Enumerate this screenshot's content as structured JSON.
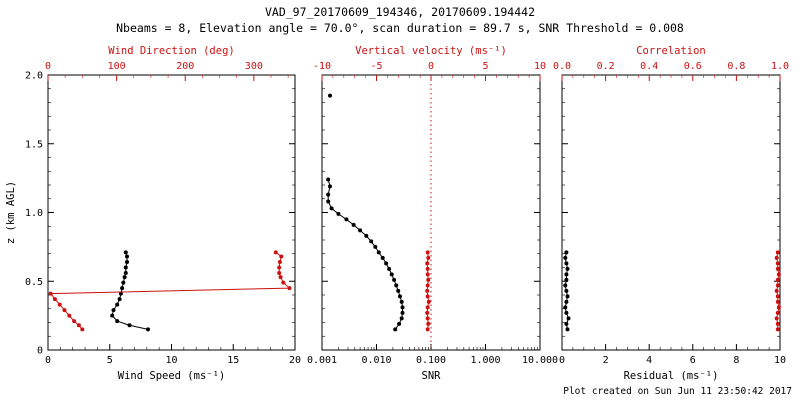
{
  "header": {
    "title": "VAD_97_20170609_194346, 20170609.194442",
    "subtitle": "Nbeams = 8, Elevation angle = 70.0°, scan duration = 89.7 s, SNR Threshold = 0.008"
  },
  "footer": {
    "created": "Plot created on Sun Jun 11 23:50:42 2017"
  },
  "colors": {
    "black": "#000000",
    "red": "#cc1111"
  },
  "chart_data": [
    {
      "type": "line",
      "name": "wind-panel",
      "ylabel": "z (km AGL)",
      "ylim": [
        0,
        2
      ],
      "yticks": [
        0,
        0.5,
        1,
        1.5,
        2
      ],
      "ytick_labels": [
        "0",
        "0.5",
        "1.0",
        "1.5",
        "2.0"
      ],
      "yminor": 0.1,
      "bottom_axis": {
        "label": "Wind Speed (ms⁻¹)",
        "lim": [
          0,
          20
        ],
        "ticks": [
          0,
          5,
          10,
          15,
          20
        ],
        "tick_labels": [
          "0",
          "5",
          "10",
          "15",
          "20"
        ],
        "minor": 1
      },
      "top_axis": {
        "label": "Wind Direction (deg)",
        "lim": [
          0,
          360
        ],
        "ticks": [
          0,
          100,
          200,
          300
        ],
        "tick_labels": [
          "0",
          "100",
          "200",
          "300"
        ],
        "minor": 25
      },
      "series": [
        {
          "name": "wind-speed",
          "axis": "bottom",
          "color": "black",
          "points": [
            [
              8.1,
              0.15
            ],
            [
              6.6,
              0.18
            ],
            [
              5.6,
              0.21
            ],
            [
              5.2,
              0.25
            ],
            [
              5.3,
              0.29
            ],
            [
              5.6,
              0.33
            ],
            [
              5.8,
              0.37
            ],
            [
              5.9,
              0.41
            ],
            [
              6.0,
              0.45
            ],
            [
              6.1,
              0.49
            ],
            [
              6.2,
              0.53
            ],
            [
              6.3,
              0.56
            ],
            [
              6.3,
              0.6
            ],
            [
              6.4,
              0.64
            ],
            [
              6.4,
              0.68
            ],
            [
              6.3,
              0.71
            ]
          ]
        },
        {
          "name": "wind-direction",
          "axis": "top",
          "color": "red",
          "points": [
            [
              50,
              0.15
            ],
            [
              45,
              0.18
            ],
            [
              38,
              0.21
            ],
            [
              31,
              0.25
            ],
            [
              24,
              0.29
            ],
            [
              17,
              0.33
            ],
            [
              10,
              0.37
            ],
            [
              4,
              0.41
            ],
            [
              352,
              0.45
            ],
            [
              343,
              0.49
            ],
            [
              339,
              0.53
            ],
            [
              337,
              0.56
            ],
            [
              337,
              0.6
            ],
            [
              338,
              0.64
            ],
            [
              340,
              0.68
            ],
            [
              332,
              0.71
            ]
          ]
        }
      ]
    },
    {
      "type": "line",
      "name": "snr-panel",
      "ylim": [
        0,
        2
      ],
      "yticks": [
        0,
        0.5,
        1,
        1.5,
        2
      ],
      "yminor": 0.1,
      "bottom_axis": {
        "label": "SNR",
        "lim": [
          0.001,
          10
        ],
        "log": true,
        "ticks": [
          0.001,
          0.01,
          0.1,
          1,
          10
        ],
        "tick_labels": [
          "0.001",
          "0.010",
          "0.100",
          "1.000",
          "10.000"
        ]
      },
      "top_axis": {
        "label": "Vertical velocity (ms⁻¹)",
        "lim": [
          -10,
          10
        ],
        "ticks": [
          -10,
          -5,
          0,
          5,
          10
        ],
        "tick_labels": [
          "-10",
          "-5",
          "0",
          "5",
          "10"
        ],
        "minor": 1
      },
      "ref_line": {
        "axis": "top",
        "value": 0,
        "color": "red"
      },
      "series": [
        {
          "name": "snr-profile",
          "axis": "bottom",
          "color": "black",
          "points": [
            [
              0.022,
              0.15
            ],
            [
              0.026,
              0.19
            ],
            [
              0.029,
              0.23
            ],
            [
              0.03,
              0.27
            ],
            [
              0.03,
              0.31
            ],
            [
              0.029,
              0.35
            ],
            [
              0.027,
              0.39
            ],
            [
              0.025,
              0.43
            ],
            [
              0.023,
              0.47
            ],
            [
              0.021,
              0.51
            ],
            [
              0.019,
              0.55
            ],
            [
              0.017,
              0.59
            ],
            [
              0.015,
              0.63
            ],
            [
              0.013,
              0.67
            ],
            [
              0.011,
              0.71
            ],
            [
              0.0095,
              0.75
            ],
            [
              0.008,
              0.79
            ],
            [
              0.0065,
              0.83
            ],
            [
              0.005,
              0.87
            ],
            [
              0.0038,
              0.91
            ],
            [
              0.0028,
              0.95
            ],
            [
              0.002,
              0.99
            ],
            [
              0.0015,
              1.03
            ],
            [
              0.0013,
              1.08
            ],
            [
              0.0013,
              1.13
            ],
            [
              0.0014,
              1.19
            ],
            [
              0.0013,
              1.24
            ]
          ]
        },
        {
          "name": "snr-outlier",
          "axis": "bottom",
          "color": "black",
          "points": [
            [
              0.0014,
              1.85
            ]
          ]
        },
        {
          "name": "vertical-velocity",
          "axis": "top",
          "color": "red",
          "points": [
            [
              -0.3,
              0.15
            ],
            [
              -0.25,
              0.19
            ],
            [
              -0.3,
              0.23
            ],
            [
              -0.35,
              0.27
            ],
            [
              -0.3,
              0.31
            ],
            [
              -0.2,
              0.35
            ],
            [
              -0.3,
              0.39
            ],
            [
              -0.35,
              0.43
            ],
            [
              -0.3,
              0.47
            ],
            [
              -0.25,
              0.51
            ],
            [
              -0.3,
              0.55
            ],
            [
              -0.3,
              0.59
            ],
            [
              -0.35,
              0.63
            ],
            [
              -0.25,
              0.67
            ],
            [
              -0.3,
              0.71
            ]
          ]
        }
      ]
    },
    {
      "type": "line",
      "name": "residual-panel",
      "ylim": [
        0,
        2
      ],
      "yticks": [
        0,
        0.5,
        1,
        1.5,
        2
      ],
      "yminor": 0.1,
      "bottom_axis": {
        "label": "Residual (ms⁻¹)",
        "lim": [
          0,
          10
        ],
        "ticks": [
          0,
          2,
          4,
          6,
          8,
          10
        ],
        "tick_labels": [
          "0",
          "2",
          "4",
          "6",
          "8",
          "10"
        ],
        "minor": 0.5
      },
      "top_axis": {
        "label": "Correlation",
        "lim": [
          0,
          1
        ],
        "ticks": [
          0,
          0.2,
          0.4,
          0.6,
          0.8,
          1
        ],
        "tick_labels": [
          "0.0",
          "0.2",
          "0.4",
          "0.6",
          "0.8",
          "1.0"
        ],
        "minor": 0.05
      },
      "series": [
        {
          "name": "residual",
          "axis": "bottom",
          "color": "black",
          "points": [
            [
              0.25,
              0.15
            ],
            [
              0.2,
              0.19
            ],
            [
              0.3,
              0.23
            ],
            [
              0.2,
              0.27
            ],
            [
              0.15,
              0.31
            ],
            [
              0.2,
              0.35
            ],
            [
              0.25,
              0.39
            ],
            [
              0.2,
              0.43
            ],
            [
              0.15,
              0.47
            ],
            [
              0.2,
              0.51
            ],
            [
              0.2,
              0.55
            ],
            [
              0.25,
              0.59
            ],
            [
              0.2,
              0.63
            ],
            [
              0.15,
              0.67
            ],
            [
              0.2,
              0.71
            ]
          ]
        },
        {
          "name": "correlation",
          "axis": "top",
          "color": "red",
          "points": [
            [
              0.99,
              0.15
            ],
            [
              0.99,
              0.19
            ],
            [
              0.985,
              0.23
            ],
            [
              0.99,
              0.27
            ],
            [
              0.995,
              0.31
            ],
            [
              0.99,
              0.35
            ],
            [
              0.99,
              0.39
            ],
            [
              0.985,
              0.43
            ],
            [
              0.99,
              0.47
            ],
            [
              0.99,
              0.51
            ],
            [
              0.995,
              0.55
            ],
            [
              0.99,
              0.59
            ],
            [
              0.99,
              0.63
            ],
            [
              0.985,
              0.67
            ],
            [
              0.99,
              0.71
            ]
          ]
        }
      ]
    }
  ]
}
